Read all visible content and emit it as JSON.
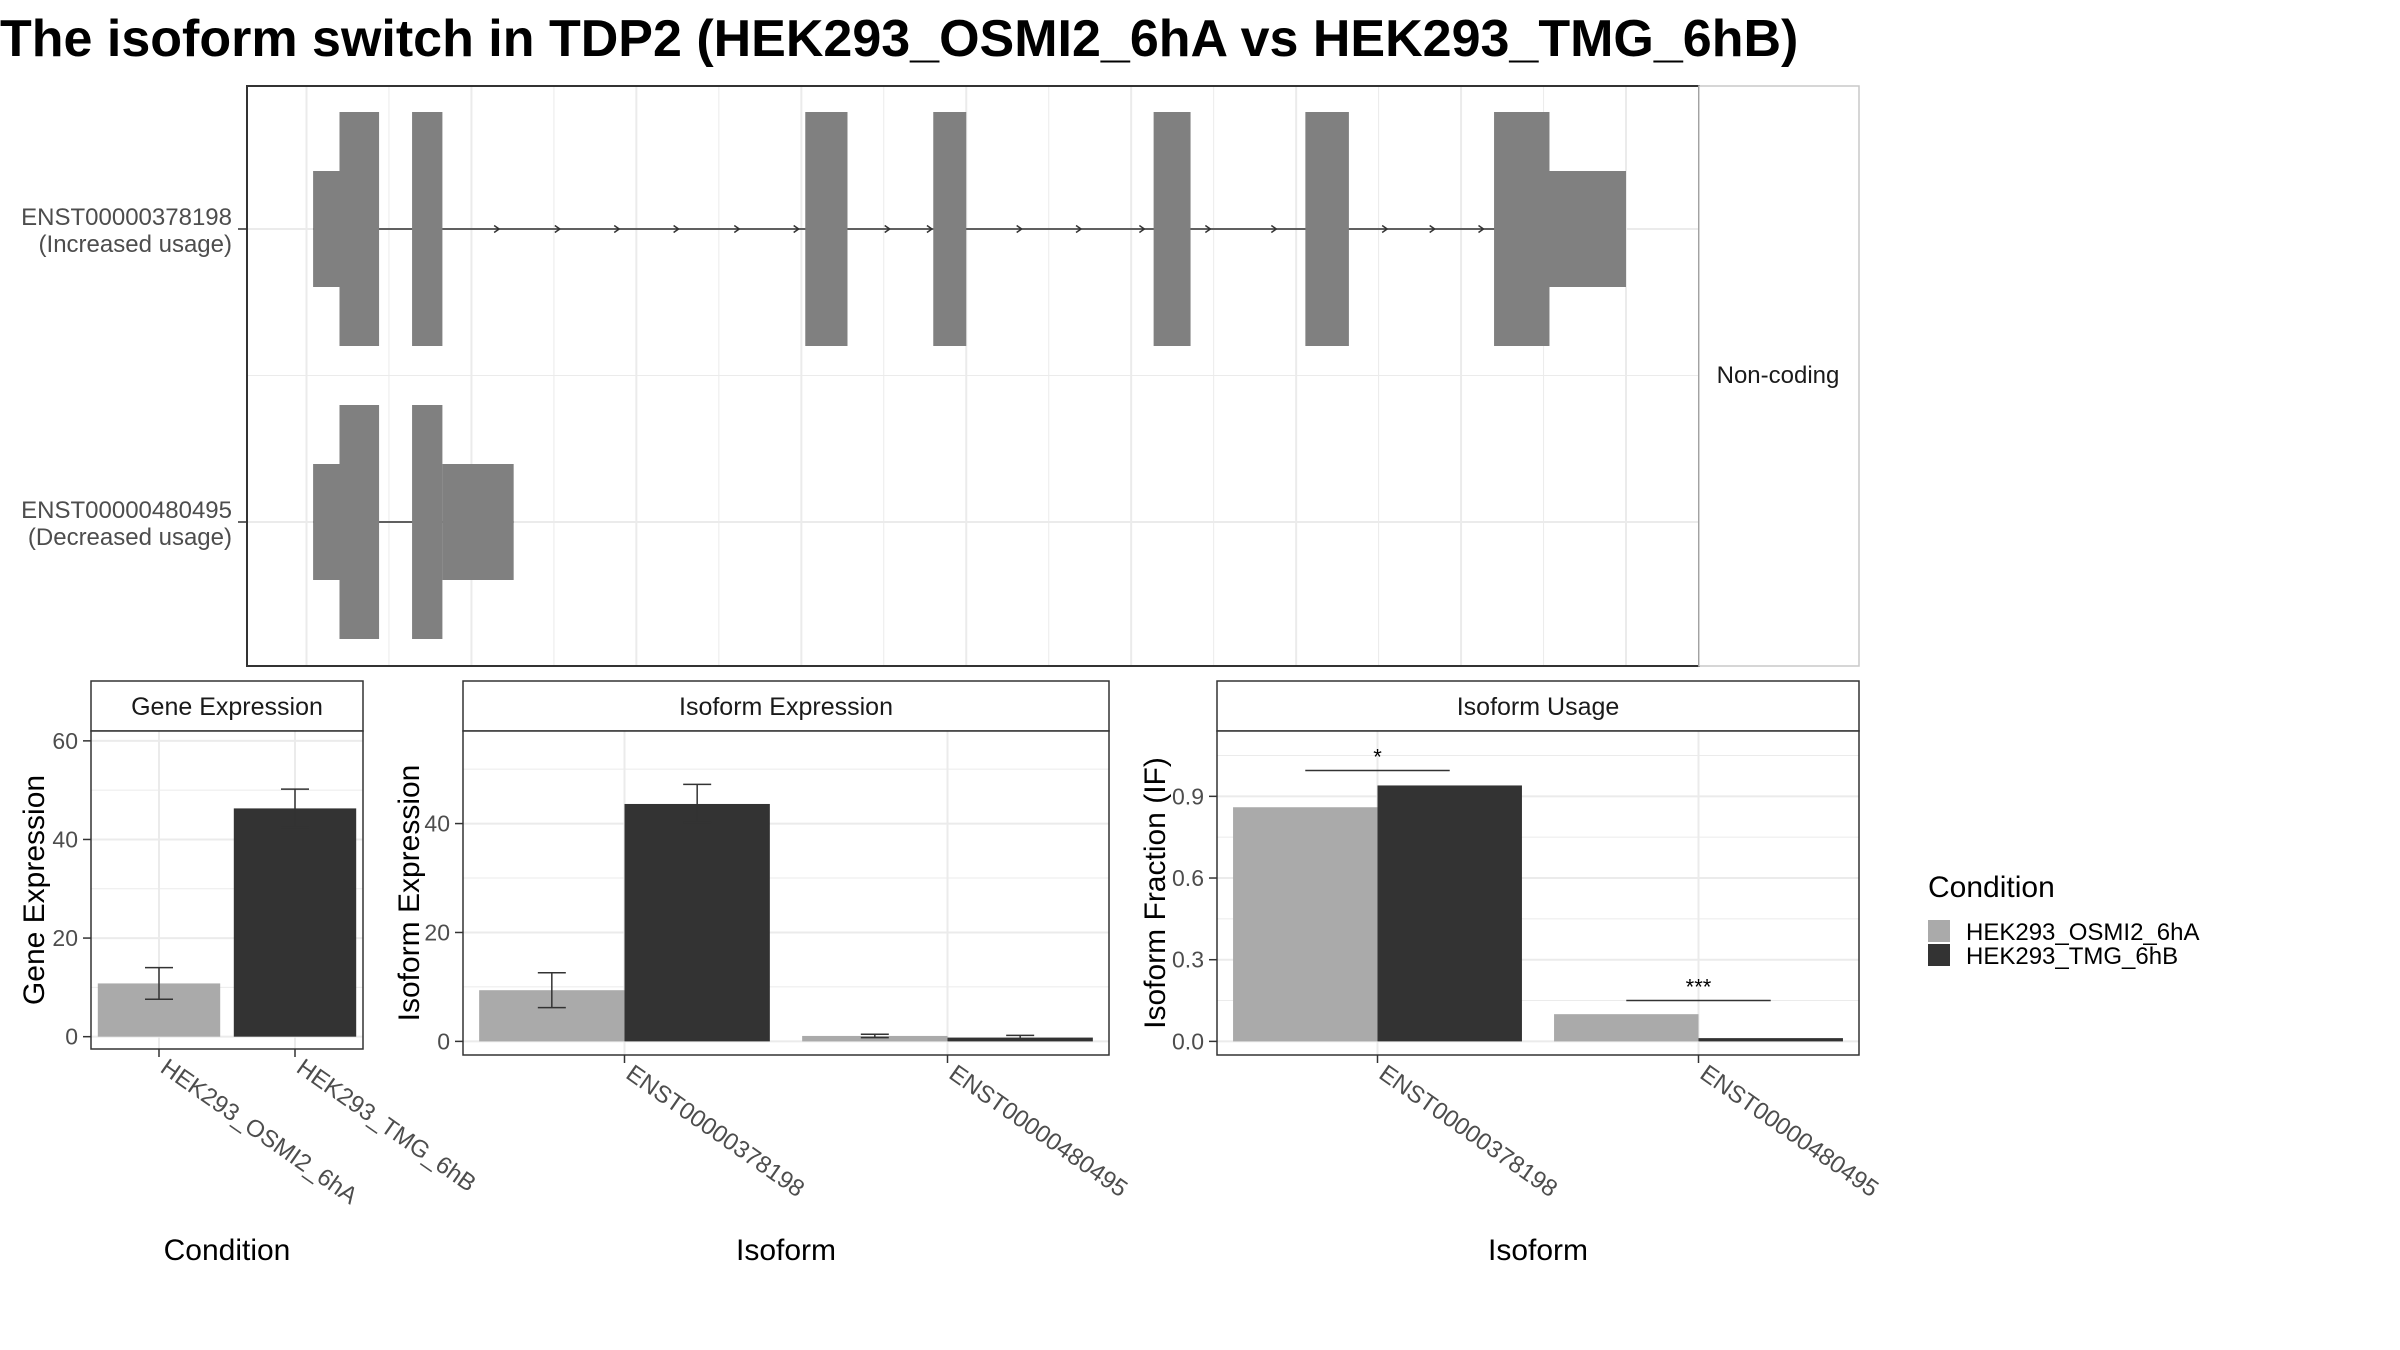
{
  "title": "The isoform switch in TDP2 (HEK293_OSMI2_6hA vs HEK293_TMG_6hB)",
  "colors": {
    "transcript": "#808080",
    "condition_a": "#AAAAAA",
    "condition_b": "#333333",
    "grid": "#EBEBEB",
    "panel_border": "#333333",
    "strip_fill": "#FFFFFF"
  },
  "structure": {
    "coding_label": "Non-coding",
    "genomic_range": [
      0,
      100
    ],
    "transcripts": [
      {
        "id": "ENST00000378198",
        "usage": "(Increased usage)",
        "start": 0.5,
        "end": 100,
        "utr": [
          [
            0.5,
            2.5
          ],
          [
            93.5,
            100
          ]
        ],
        "exons": [
          [
            2.5,
            5.5
          ],
          [
            8,
            10.3
          ],
          [
            37.8,
            41
          ],
          [
            47.5,
            50
          ],
          [
            64.2,
            67
          ],
          [
            75.7,
            79
          ],
          [
            90,
            94.2
          ]
        ],
        "arrow_positions": [
          14.6,
          19.2,
          23.7,
          28.2,
          32.8,
          37.3,
          44.2,
          47.4,
          54.2,
          58.7,
          63.5,
          68.5,
          73.5,
          81.9,
          85.5,
          89.2
        ]
      },
      {
        "id": "ENST00000480495",
        "usage": "(Decreased usage)",
        "start": 0.5,
        "end": 15.7,
        "utr": [
          [
            0.5,
            2.5
          ],
          [
            10.3,
            15.7
          ]
        ],
        "exons": [
          [
            2.5,
            5.5
          ],
          [
            8,
            10.3
          ]
        ],
        "arrow_positions": []
      }
    ]
  },
  "legend": {
    "title": "Condition",
    "items": [
      "HEK293_OSMI2_6hA",
      "HEK293_TMG_6hB"
    ]
  },
  "chart_data": [
    {
      "type": "bar",
      "strip": "Gene Expression",
      "xlabel": "Condition",
      "ylabel": "Gene Expression",
      "categories": [
        "HEK293_OSMI2_6hA",
        "HEK293_TMG_6hB"
      ],
      "values": [
        10.8,
        46.3
      ],
      "error": [
        [
          7.6,
          14.0
        ],
        [
          42.4,
          50.2
        ]
      ],
      "ylim": [
        -2.5,
        62
      ],
      "yticks": [
        0,
        20,
        40,
        60
      ]
    },
    {
      "type": "bar",
      "strip": "Isoform Expression",
      "xlabel": "Isoform",
      "ylabel": "Isoform Expression",
      "categories": [
        "ENST00000378198",
        "ENST00000480495"
      ],
      "series": [
        {
          "name": "HEK293_OSMI2_6hA",
          "values": [
            9.4,
            1.0
          ],
          "error": [
            [
              6.2,
              12.6
            ],
            [
              0.7,
              1.3
            ]
          ]
        },
        {
          "name": "HEK293_TMG_6hB",
          "values": [
            43.6,
            0.7
          ],
          "error": [
            [
              40.2,
              47.2
            ],
            [
              0.4,
              1.1
            ]
          ]
        }
      ],
      "ylim": [
        -2.5,
        57
      ],
      "yticks": [
        0,
        20,
        40
      ]
    },
    {
      "type": "bar",
      "strip": "Isoform Usage",
      "xlabel": "Isoform",
      "ylabel": "Isoform Fraction (IF)",
      "categories": [
        "ENST00000378198",
        "ENST00000480495"
      ],
      "series": [
        {
          "name": "HEK293_OSMI2_6hA",
          "values": [
            0.86,
            0.1
          ]
        },
        {
          "name": "HEK293_TMG_6hB",
          "values": [
            0.94,
            0.012
          ]
        }
      ],
      "significance": [
        {
          "category": 0,
          "label": "*",
          "y": 0.995
        },
        {
          "category": 1,
          "label": "***",
          "y": 0.15
        }
      ],
      "ylim": [
        -0.05,
        1.14
      ],
      "yticks": [
        0.0,
        0.3,
        0.6,
        0.9
      ],
      "ytick_labels": [
        "0.0",
        "0.3",
        "0.6",
        "0.9"
      ]
    }
  ]
}
